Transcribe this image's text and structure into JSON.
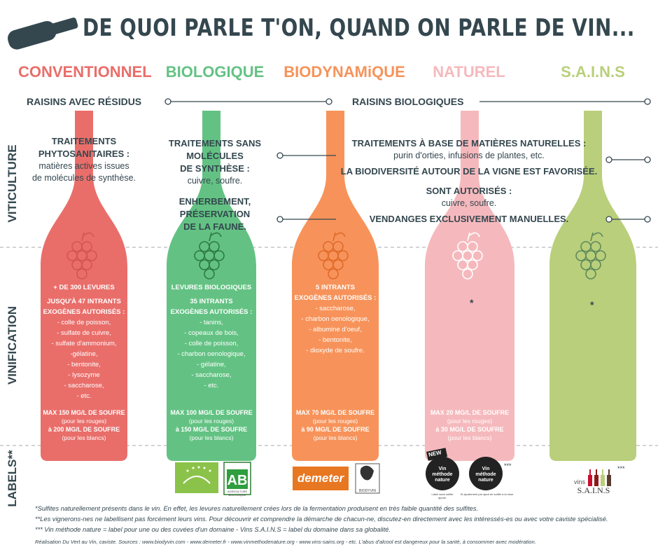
{
  "title": "DE QUOI PARLE T'ON, QUAND ON PARLE DE VIN...",
  "colors": {
    "conventionnel": "#e96e6a",
    "biologique": "#63c283",
    "biodynamique": "#f7935a",
    "naturel": "#f5b9bd",
    "sains": "#b9cf7b",
    "dark": "#34474f"
  },
  "categories": [
    {
      "label": "CONVENTIONNEL",
      "color": "#e96e6a"
    },
    {
      "label": "BIOLOGIQUE",
      "color": "#63c283"
    },
    {
      "label": "BIODYNAMiQUE",
      "color": "#f7935a"
    },
    {
      "label": "NATUREL",
      "color": "#f5b9bd"
    },
    {
      "label": "S.A.I.N.S",
      "color": "#b9cf7b"
    }
  ],
  "sections": {
    "viticulture": "VITICULTURE",
    "vinification": "VINIFICATION",
    "labels": "LABELS**"
  },
  "raisins": {
    "left": "RAISINS AVEC RÉSIDUS",
    "right": "RAISINS BIOLOGIQUES"
  },
  "viticulture": {
    "conv_title": "TRAITEMENTS PHYTOSANITAIRES  :",
    "conv_text1": "matières actives issues",
    "conv_text2": "de molécules de synthèse.",
    "bio_title1": "TRAITEMENTS SANS",
    "bio_title2": "MOLÉCULES",
    "bio_title3": "DE SYNTHÈSE :",
    "bio_text": "cuivre, soufre.",
    "bio_enh1": "ENHERBEMENT,",
    "bio_enh2": "PRÉSERVATION",
    "bio_enh3": "DE LA FAUNE.",
    "nat_title": "TRAITEMENTS À BASE DE MATIÈRES NATURELLES :",
    "nat_text": "purin d'orties, infusions de plantes, etc.",
    "biodiv": "LA BIODIVERSITÉ AUTOUR DE LA VIGNE EST FAVORISÉE.",
    "auto_title": "SONT AUTORISÉS :",
    "auto_text": "cuivre, soufre.",
    "vendanges": "VENDANGES EXCLUSIVEMENT MANUELLES."
  },
  "vinification": {
    "conv": [
      "+ DE 300 LEVURES",
      "JUSQU'À  47 INTRANTS",
      "EXOGÈNES AUTORISÉS :",
      "- colle de poisson,",
      "- sulfate de cuivre,",
      "- sulfate d'ammonium,",
      "-gélatine,",
      "- bentonite,",
      "- lysozyme",
      "- saccharose,",
      "- etc."
    ],
    "bio": [
      "LEVURES  BIOLOGIQUES",
      "35 INTRANTS",
      "EXOGÈNES AUTORISÉS :",
      "- tanins,",
      "- copeaux de bois,",
      "- colle de poisson,",
      "- charbon oenologique,",
      "- gélatine,",
      "- saccharose,",
      "- etc."
    ],
    "biody": [
      "5 INTRANTS",
      "EXOGÈNES AUTORISÉS :",
      "- saccharose,",
      "- charbon oenologique,",
      "- albumine d'oeuf,",
      "- bentonite,",
      "- dioxyde de soufre."
    ],
    "star": "*"
  },
  "soufre": {
    "conv": [
      "MAX 150 MG/L DE SOUFRE",
      "(pour les rouges)",
      "à 200 MG/L DE SOUFRE",
      "(pour les blancs)"
    ],
    "bio": [
      "MAX 100 MG/L DE SOUFRE",
      "(pour les rouges)",
      "à 150 MG/L DE SOUFRE",
      "(pour les blancs)"
    ],
    "biody": [
      "MAX 70 MG/L DE SOUFRE",
      "(pour les rouges)",
      "à 90 MG/L DE SOUFRE",
      "(pour les blancs)"
    ],
    "nat": [
      "MAX 20 MG/L DE SOUFRE",
      "(pour les rouges)",
      "à 30 MG/L DE SOUFRE",
      "(pour les blancs)"
    ]
  },
  "labels": {
    "demeter": "demeter",
    "biodyvin": "BIODYVIN",
    "ab": "AB",
    "ab_small": "AGRICULTURE BIOLOGIQUE",
    "new": "NEW",
    "vin_methode": "Vin méthode nature",
    "label_sans": "Label sans sulfite ajouté.",
    "label_ajout": "Si ajoutement par ajout de sulfite à la mise.",
    "stars3": "***",
    "vins": "vins",
    "sains": "S.A.I.N.S"
  },
  "footnotes": {
    "f1": "*Sulfites naturellement présents dans le vin. En effet, les levures naturellement crées lors de la fermentation produisent en très faible quantité des sulfites.",
    "f2": "**Les vignerons-nes ne labellisent pas forcément leurs vins. Pour découvrir et comprendre la démarche de chacun-ne, discutez-en directement avec les intéressés-es ou avec votre caviste spécialisé.",
    "f3": "*** Vin méthode nature = label pour une ou des cuvées d'un domaine - Vins S.A.I.N.S  = label du domaine dans sa globalité.",
    "f4": "Réalisation Du Vert au Vin, caviste. Sources :  www.biodyvin.com - www.demeter.fr  - www.vinmethodenature.org - www.vins-sains.org - etc. L'abus d'alcool est dangereux pour la santé, à consommer avec modération."
  }
}
